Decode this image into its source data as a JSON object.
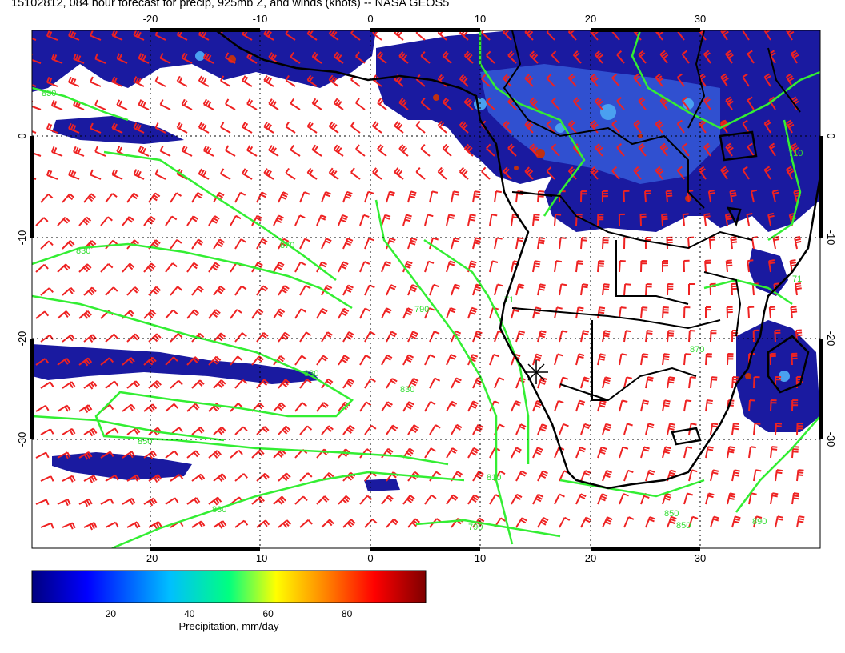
{
  "title": "15102812, 084 hour forecast for precip, 925mb Z, and winds (knots) -- NASA GEOS5",
  "map": {
    "lon_range": [
      -30,
      41
    ],
    "lat_range": [
      -40,
      10
    ],
    "lon_ticks": [
      "-20",
      "-10",
      "0",
      "10",
      "20",
      "30"
    ],
    "lat_ticks": [
      "0",
      "-10",
      "-20",
      "-30"
    ],
    "contour_labels": [
      "830",
      "830",
      "870",
      "790",
      "830",
      "830",
      "850",
      "830",
      "810",
      "790",
      "870",
      "850",
      "850",
      "890",
      "71",
      "71",
      "710"
    ],
    "colors": {
      "precip_dark": "#1a1aa0",
      "precip_mid": "#3050d0",
      "precip_light": "#4aa0f0",
      "precip_high": "#c03010",
      "contour": "#33ee33",
      "wind_barb": "#ee2222",
      "coast": "#000000"
    }
  },
  "colorbar": {
    "range": [
      0,
      100
    ],
    "ticks": [
      "20",
      "40",
      "60",
      "80"
    ],
    "label": "Precipitation, mm/day",
    "colors": [
      "#00007f",
      "#0000ff",
      "#00bfff",
      "#00ff80",
      "#ffff00",
      "#ff8000",
      "#ff0000",
      "#7f0000"
    ]
  }
}
